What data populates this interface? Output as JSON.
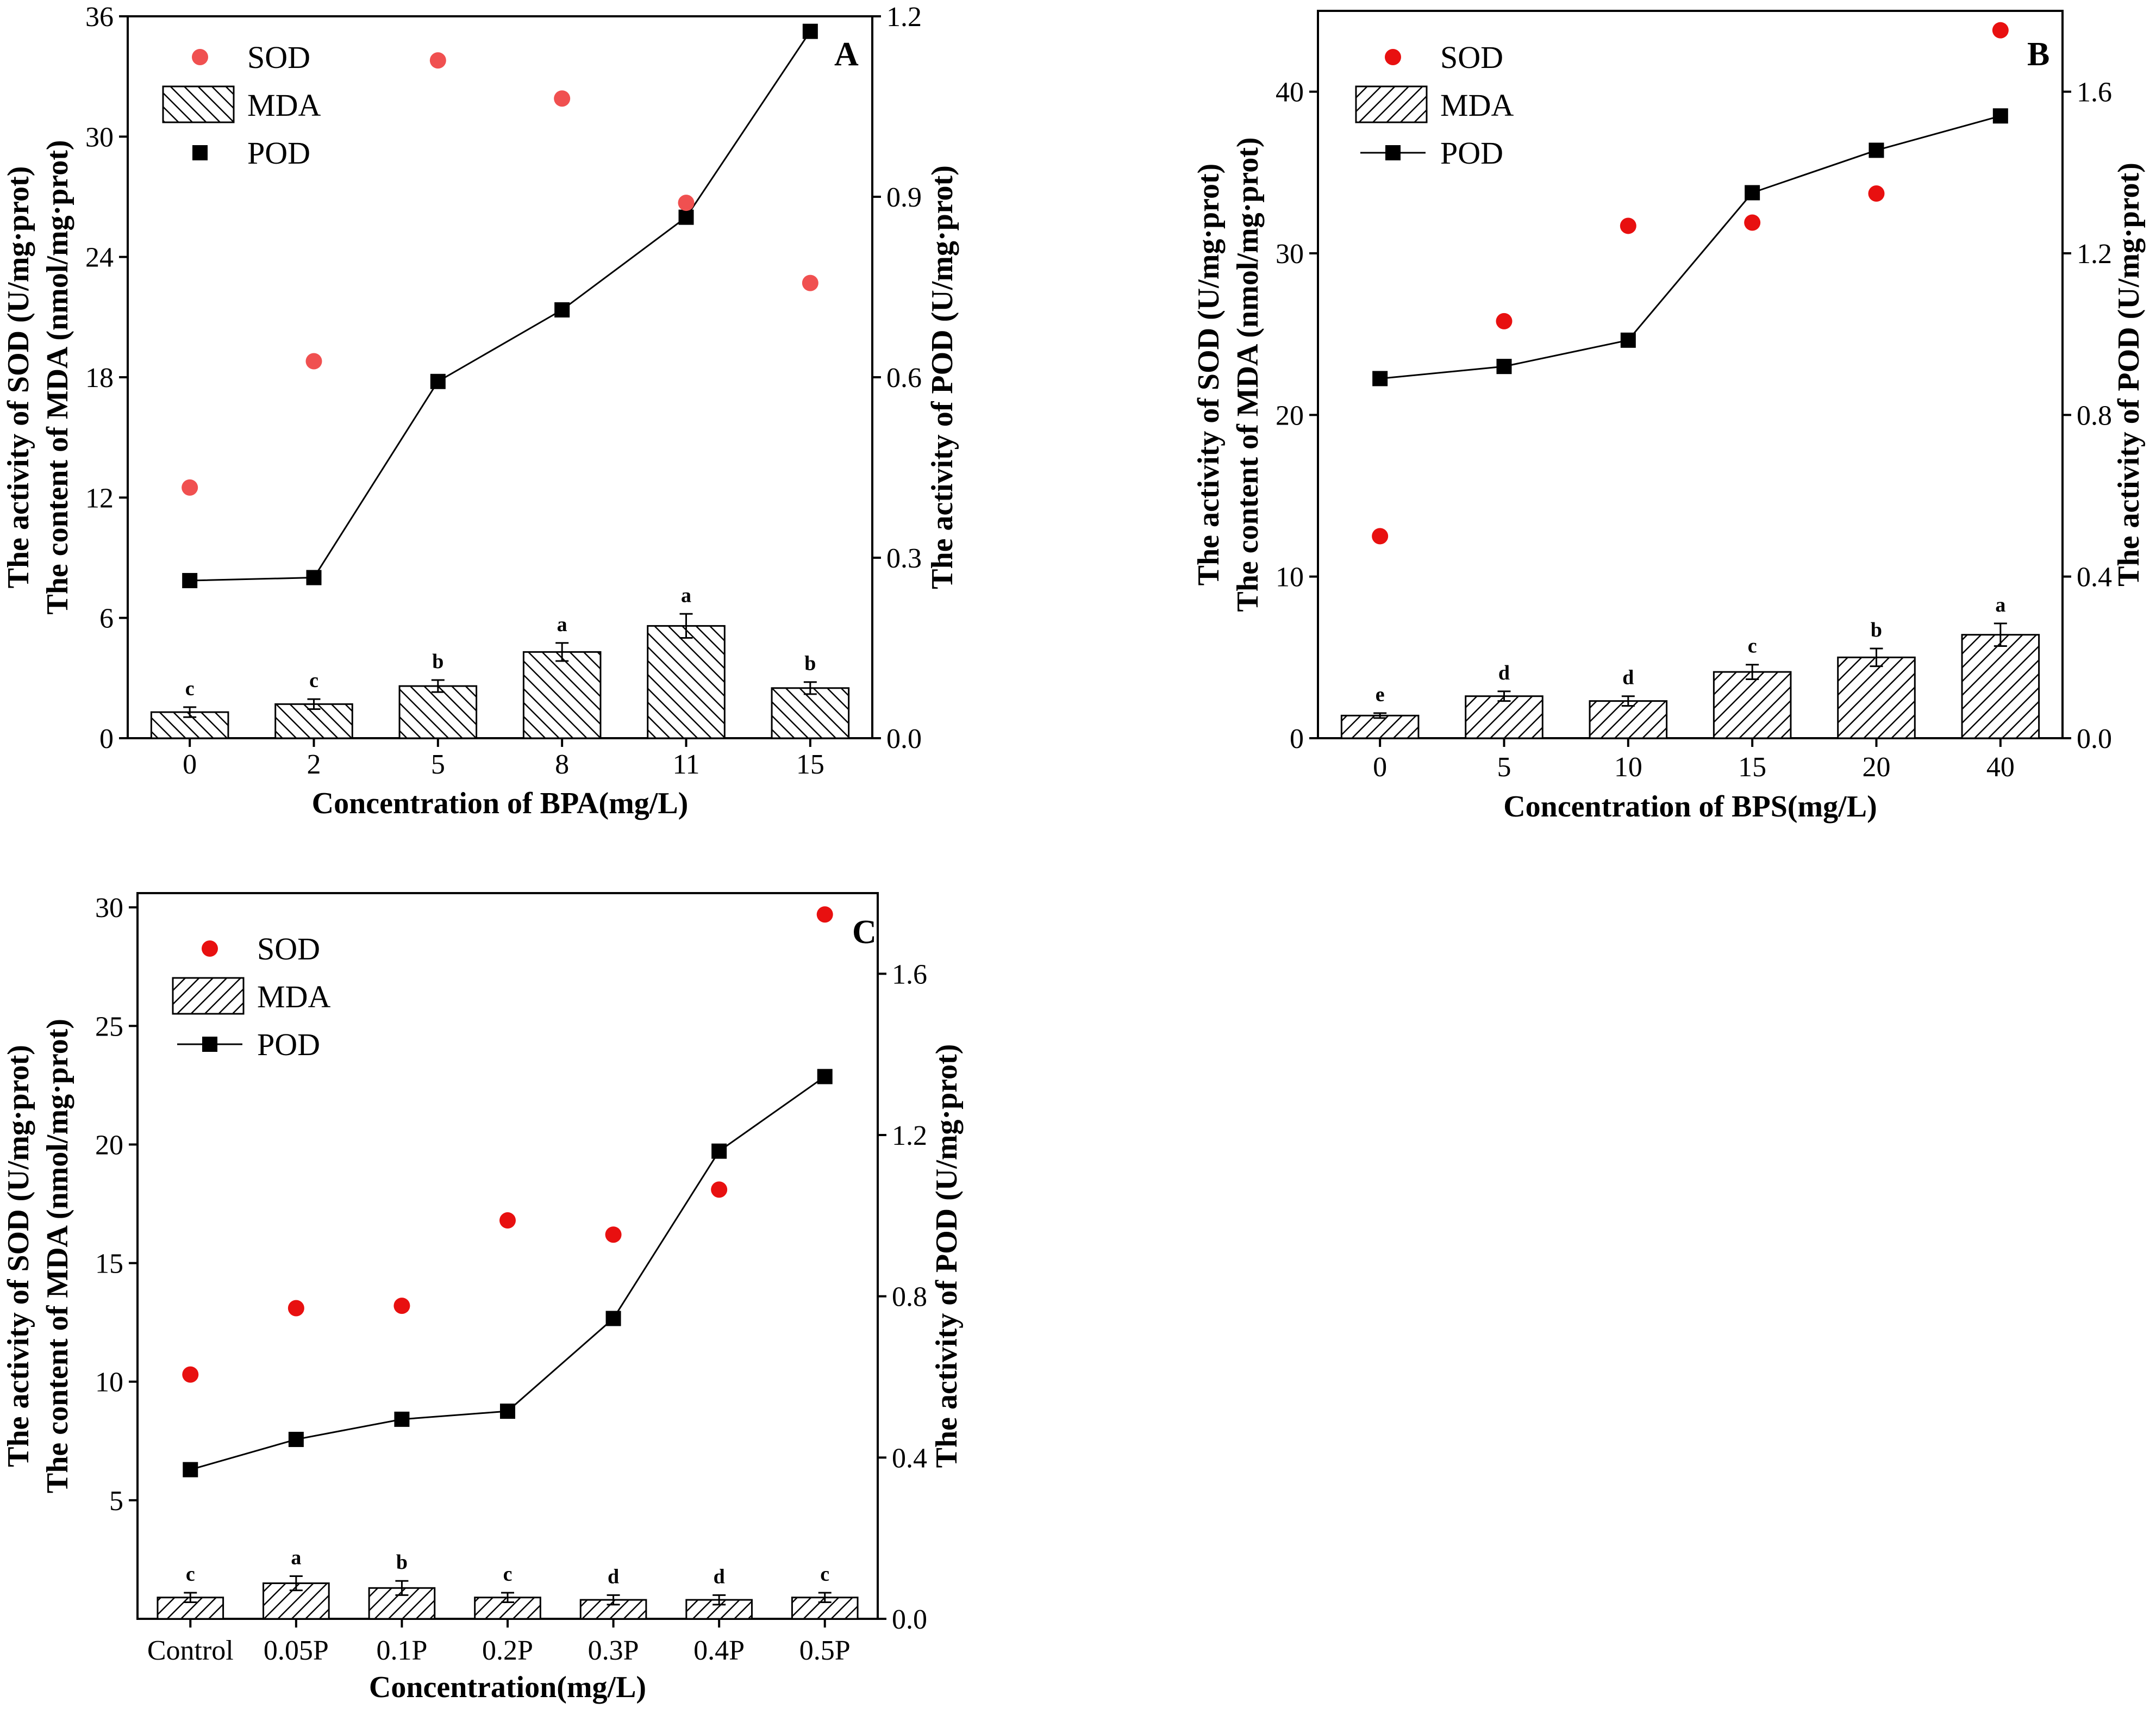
{
  "chart_data": [
    {
      "id": "A",
      "type": "bar+line+scatter",
      "panel_label": "A",
      "categories": [
        "0",
        "2",
        "5",
        "8",
        "11",
        "15"
      ],
      "xlabel": "Concentration of BPA(mg/L)",
      "ylabel_left": [
        "The activity of  SOD (U/mg·prot)",
        "The content of  MDA (nmol/mg·prot)"
      ],
      "ylabel_right": "The activity of  POD (U/mg·prot)",
      "ylim_left": [
        0,
        36
      ],
      "yticks_left": [
        0,
        6,
        12,
        18,
        24,
        30,
        36
      ],
      "ytick_labels_left": [
        "0",
        "6",
        "12",
        "18",
        "24",
        "30",
        "36"
      ],
      "ylim_right": [
        0,
        1.2
      ],
      "yticks_right": [
        0,
        0.3,
        0.6,
        0.9,
        1.2
      ],
      "ytick_labels_right": [
        "0.0",
        "0.3",
        "0.6",
        "0.9",
        "1.2"
      ],
      "legend": [
        "SOD",
        "MDA",
        "POD"
      ],
      "legend_pod_has_line": false,
      "legend_mda_hatch": "back",
      "series": [
        {
          "name": "SOD",
          "axis": "left",
          "values": [
            12.5,
            18.8,
            33.8,
            31.9,
            26.7,
            22.7
          ],
          "color": "#f05050"
        },
        {
          "name": "MDA",
          "axis": "left",
          "values": [
            1.3,
            1.7,
            2.6,
            4.3,
            5.6,
            2.5
          ],
          "errors": [
            0.25,
            0.25,
            0.3,
            0.45,
            0.6,
            0.3
          ],
          "labels": [
            "c",
            "c",
            "b",
            "a",
            "a",
            "b"
          ]
        },
        {
          "name": "POD",
          "axis": "right",
          "values": [
            0.262,
            0.267,
            0.593,
            0.712,
            0.866,
            1.175
          ],
          "color": "#000000"
        }
      ]
    },
    {
      "id": "B",
      "type": "bar+line+scatter",
      "panel_label": "B",
      "categories": [
        "0",
        "5",
        "10",
        "15",
        "20",
        "40"
      ],
      "xlabel": "Concentration of BPS(mg/L)",
      "ylabel_left": [
        "The activity of  SOD (U/mg·prot)",
        "The content of  MDA (nmol/mg·prot)"
      ],
      "ylabel_right": "The activity of  POD (U/mg·prot)",
      "ylim_left": [
        0,
        45
      ],
      "yticks_left": [
        0,
        10,
        20,
        30,
        40
      ],
      "ytick_labels_left": [
        "0",
        "10",
        "20",
        "30",
        "40"
      ],
      "ylim_right": [
        0,
        1.8
      ],
      "yticks_right": [
        0,
        0.4,
        0.8,
        1.2,
        1.6
      ],
      "ytick_labels_right": [
        "0.0",
        "0.4",
        "0.8",
        "1.2",
        "1.6"
      ],
      "legend": [
        "SOD",
        "MDA",
        "POD"
      ],
      "legend_pod_has_line": true,
      "legend_mda_hatch": "forward",
      "series": [
        {
          "name": "SOD",
          "axis": "left",
          "values": [
            12.5,
            25.8,
            31.7,
            31.9,
            33.7,
            43.8
          ],
          "color": "#e81010"
        },
        {
          "name": "MDA",
          "axis": "left",
          "values": [
            1.4,
            2.6,
            2.3,
            4.1,
            5.0,
            6.4
          ],
          "errors": [
            0.15,
            0.3,
            0.3,
            0.45,
            0.55,
            0.7
          ],
          "labels": [
            "e",
            "d",
            "d",
            "c",
            "b",
            "a"
          ]
        },
        {
          "name": "POD",
          "axis": "right",
          "values": [
            0.89,
            0.92,
            0.985,
            1.35,
            1.455,
            1.54
          ],
          "color": "#000000"
        }
      ]
    },
    {
      "id": "C",
      "type": "bar+line+scatter",
      "panel_label": "C",
      "categories": [
        "Control",
        "0.05P",
        "0.1P",
        "0.2P",
        "0.3P",
        "0.4P",
        "0.5P"
      ],
      "xlabel": "Concentration(mg/L)",
      "ylabel_left": [
        "The activity of  SOD (U/mg·prot)",
        "The content of  MDA (nmol/mg·prot)"
      ],
      "ylabel_right": "The activity of  POD (U/mg·prot)",
      "ylim_left": [
        0,
        30.6
      ],
      "yticks_left": [
        5,
        10,
        15,
        20,
        25,
        30
      ],
      "ytick_labels_left": [
        "5",
        "10",
        "15",
        "20",
        "25",
        "30"
      ],
      "ylim_right": [
        0,
        1.8
      ],
      "yticks_right": [
        0,
        0.4,
        0.8,
        1.2,
        1.6
      ],
      "ytick_labels_right": [
        "0.0",
        "0.4",
        "0.8",
        "1.2",
        "1.6"
      ],
      "legend": [
        "SOD",
        "MDA",
        "POD"
      ],
      "legend_pod_has_line": true,
      "legend_mda_hatch": "forward",
      "series": [
        {
          "name": "SOD",
          "axis": "left",
          "values": [
            10.3,
            13.1,
            13.2,
            16.8,
            16.2,
            18.1,
            29.7
          ],
          "color": "#e81010"
        },
        {
          "name": "MDA",
          "axis": "left",
          "values": [
            0.9,
            1.5,
            1.3,
            0.9,
            0.8,
            0.8,
            0.9
          ],
          "errors": [
            0.2,
            0.3,
            0.3,
            0.2,
            0.2,
            0.2,
            0.2
          ],
          "labels": [
            "c",
            "a",
            "b",
            "c",
            "d",
            "d",
            "c"
          ]
        },
        {
          "name": "POD",
          "axis": "right",
          "values": [
            0.37,
            0.445,
            0.495,
            0.515,
            0.745,
            1.16,
            1.345
          ],
          "color": "#000000"
        }
      ]
    }
  ]
}
